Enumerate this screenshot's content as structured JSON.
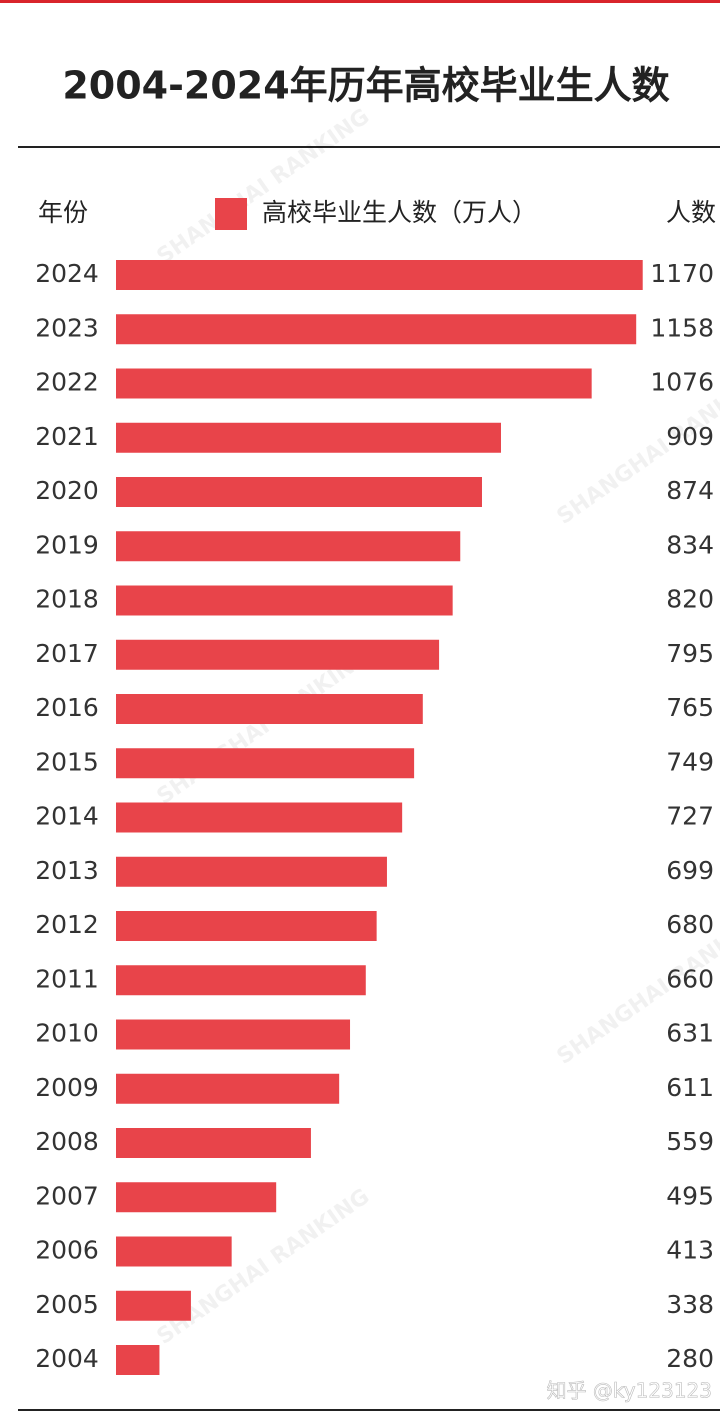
{
  "chart_data": {
    "type": "barh",
    "title": "2004-2024年历年高校毕业生人数",
    "category_label": "年份",
    "value_label": "人数",
    "categories": [
      "2024",
      "2023",
      "2022",
      "2021",
      "2020",
      "2019",
      "2018",
      "2017",
      "2016",
      "2015",
      "2014",
      "2013",
      "2012",
      "2011",
      "2010",
      "2009",
      "2008",
      "2007",
      "2006",
      "2005",
      "2004"
    ],
    "series": [
      {
        "name": "高校毕业生人数（万人）",
        "color": "#e8444a",
        "values": [
          1170,
          1158,
          1076,
          909,
          874,
          834,
          820,
          795,
          765,
          749,
          727,
          699,
          680,
          660,
          631,
          611,
          559,
          495,
          413,
          338,
          280
        ]
      }
    ],
    "xlim": [
      200,
      1200
    ],
    "watermarks": [
      "SHANGHAI RANKING",
      "知乎 @ky123123"
    ]
  }
}
